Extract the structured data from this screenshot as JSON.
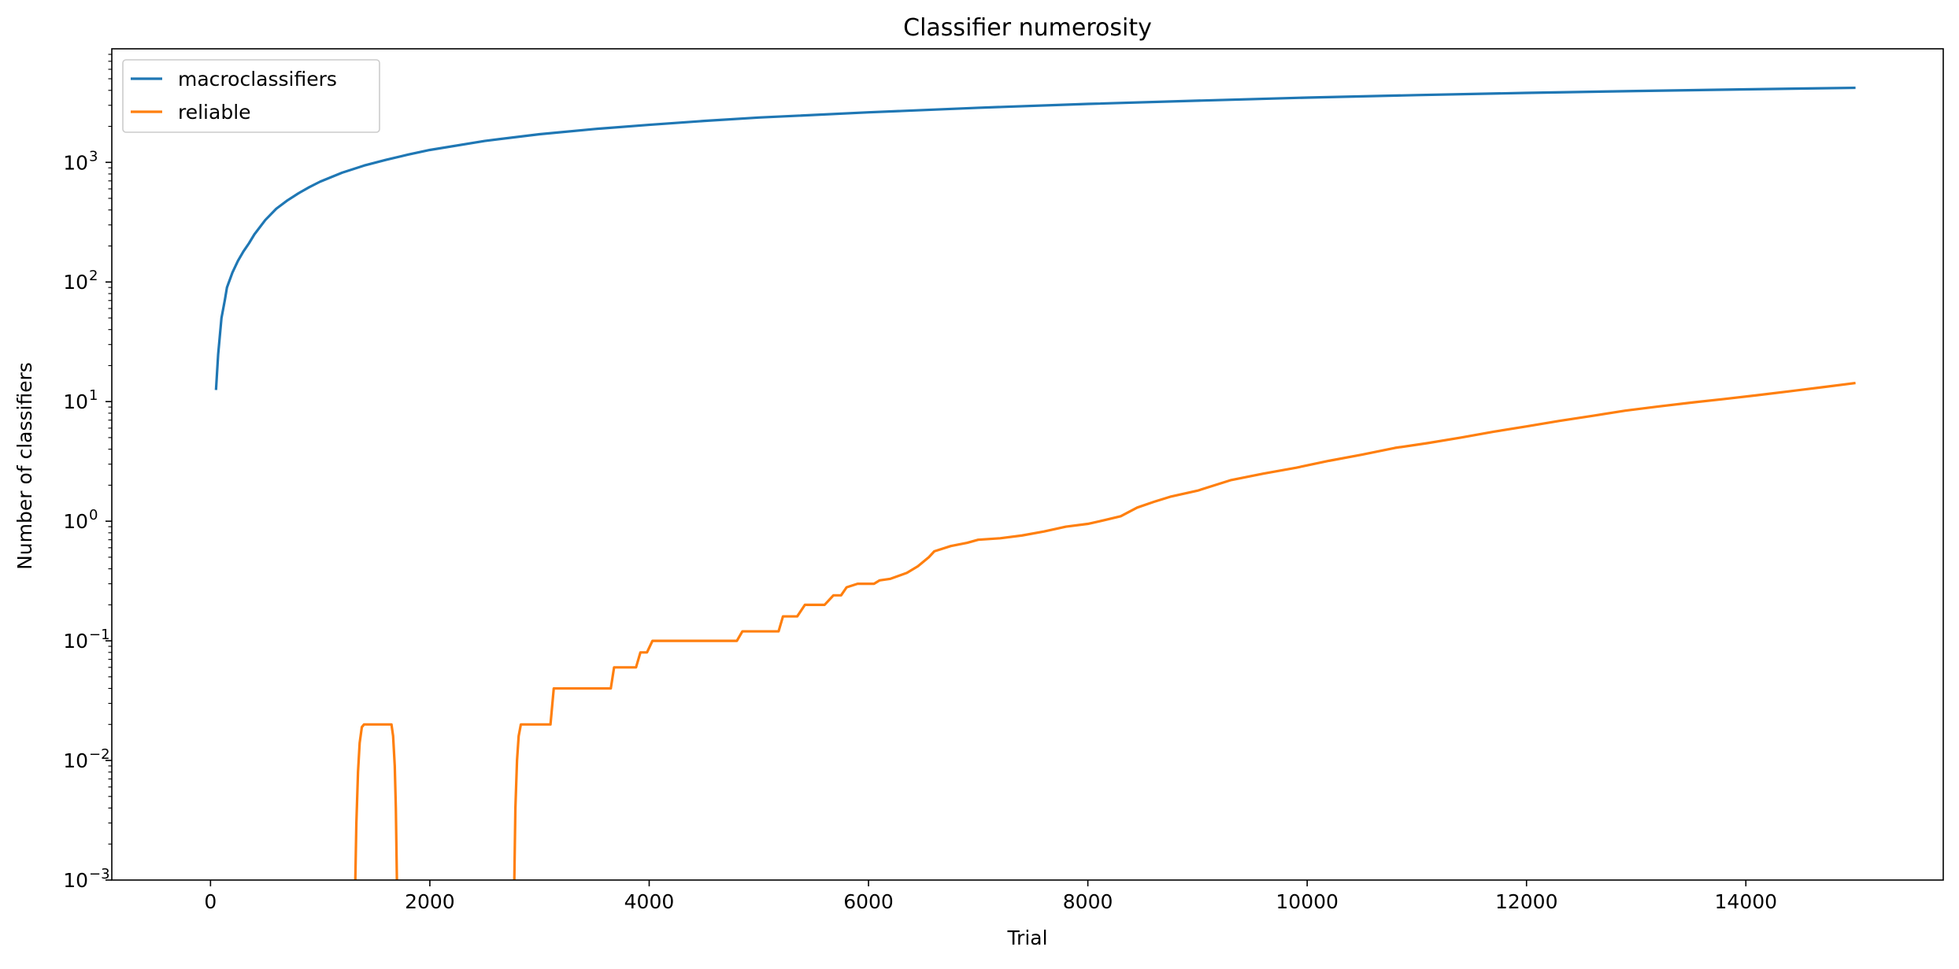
{
  "chart_data": {
    "type": "line",
    "title": "Classifier numerosity",
    "xlabel": "Trial",
    "ylabel": "Number of classifiers",
    "xlim": [
      -900,
      15800
    ],
    "ylim": [
      0.001,
      8900
    ],
    "yscale": "log",
    "x_ticks": [
      0,
      2000,
      4000,
      6000,
      8000,
      10000,
      12000,
      14000
    ],
    "x_tick_labels": [
      "0",
      "2000",
      "4000",
      "6000",
      "8000",
      "10000",
      "12000",
      "14000"
    ],
    "y_ticks": [
      {
        "value": 0.001,
        "base": "10",
        "exp": "−3"
      },
      {
        "value": 0.01,
        "base": "10",
        "exp": "−2"
      },
      {
        "value": 0.1,
        "base": "10",
        "exp": "−1"
      },
      {
        "value": 1,
        "base": "10",
        "exp": "0"
      },
      {
        "value": 10,
        "base": "10",
        "exp": "1"
      },
      {
        "value": 100,
        "base": "10",
        "exp": "2"
      },
      {
        "value": 1000,
        "base": "10",
        "exp": "3"
      }
    ],
    "grid": false,
    "legend_position": "top-left",
    "series": [
      {
        "name": "macroclassifiers",
        "color": "#1f77b4",
        "points": [
          [
            50,
            12.5
          ],
          [
            70,
            25
          ],
          [
            100,
            50
          ],
          [
            130,
            70
          ],
          [
            150,
            90
          ],
          [
            200,
            120
          ],
          [
            250,
            150
          ],
          [
            300,
            180
          ],
          [
            350,
            210
          ],
          [
            400,
            250
          ],
          [
            500,
            330
          ],
          [
            600,
            410
          ],
          [
            700,
            480
          ],
          [
            800,
            550
          ],
          [
            900,
            620
          ],
          [
            1000,
            690
          ],
          [
            1200,
            820
          ],
          [
            1400,
            940
          ],
          [
            1600,
            1050
          ],
          [
            1800,
            1160
          ],
          [
            2000,
            1270
          ],
          [
            2500,
            1510
          ],
          [
            3000,
            1720
          ],
          [
            3500,
            1900
          ],
          [
            4000,
            2060
          ],
          [
            4500,
            2220
          ],
          [
            5000,
            2370
          ],
          [
            6000,
            2620
          ],
          [
            7000,
            2860
          ],
          [
            8000,
            3080
          ],
          [
            9000,
            3280
          ],
          [
            10000,
            3480
          ],
          [
            11000,
            3650
          ],
          [
            12000,
            3810
          ],
          [
            13000,
            3950
          ],
          [
            14000,
            4080
          ],
          [
            15000,
            4200
          ]
        ]
      },
      {
        "name": "reliable",
        "color": "#ff7f0e",
        "segments": [
          [
            [
              1320,
              0.00095
            ],
            [
              1330,
              0.003
            ],
            [
              1345,
              0.008
            ],
            [
              1360,
              0.014
            ],
            [
              1380,
              0.019
            ],
            [
              1400,
              0.02
            ],
            [
              1650,
              0.02
            ],
            [
              1665,
              0.016
            ],
            [
              1680,
              0.009
            ],
            [
              1690,
              0.004
            ],
            [
              1700,
              0.00095
            ]
          ],
          [
            [
              2770,
              0.00095
            ],
            [
              2780,
              0.004
            ],
            [
              2795,
              0.01
            ],
            [
              2810,
              0.016
            ],
            [
              2830,
              0.02
            ],
            [
              3100,
              0.02
            ],
            [
              3130,
              0.04
            ],
            [
              3650,
              0.04
            ],
            [
              3680,
              0.06
            ],
            [
              3880,
              0.06
            ],
            [
              3920,
              0.08
            ],
            [
              3980,
              0.08
            ],
            [
              4030,
              0.1
            ],
            [
              4800,
              0.1
            ],
            [
              4850,
              0.12
            ],
            [
              5180,
              0.12
            ],
            [
              5220,
              0.16
            ],
            [
              5350,
              0.16
            ],
            [
              5420,
              0.2
            ],
            [
              5600,
              0.2
            ],
            [
              5680,
              0.24
            ],
            [
              5750,
              0.24
            ],
            [
              5800,
              0.28
            ],
            [
              5900,
              0.3
            ],
            [
              6050,
              0.3
            ],
            [
              6100,
              0.32
            ],
            [
              6200,
              0.33
            ],
            [
              6350,
              0.37
            ],
            [
              6450,
              0.42
            ],
            [
              6550,
              0.5
            ],
            [
              6600,
              0.56
            ],
            [
              6750,
              0.62
            ],
            [
              6900,
              0.66
            ],
            [
              7000,
              0.7
            ],
            [
              7200,
              0.72
            ],
            [
              7400,
              0.76
            ],
            [
              7600,
              0.82
            ],
            [
              7800,
              0.9
            ],
            [
              8000,
              0.95
            ],
            [
              8150,
              1.02
            ],
            [
              8300,
              1.1
            ],
            [
              8450,
              1.3
            ],
            [
              8600,
              1.45
            ],
            [
              8750,
              1.6
            ],
            [
              9000,
              1.8
            ],
            [
              9300,
              2.2
            ],
            [
              9600,
              2.5
            ],
            [
              9900,
              2.8
            ],
            [
              10200,
              3.2
            ],
            [
              10500,
              3.6
            ],
            [
              10800,
              4.1
            ],
            [
              11100,
              4.5
            ],
            [
              11400,
              5.0
            ],
            [
              11700,
              5.6
            ],
            [
              12000,
              6.2
            ],
            [
              12300,
              6.9
            ],
            [
              12600,
              7.6
            ],
            [
              12900,
              8.4
            ],
            [
              13200,
              9.1
            ],
            [
              13500,
              9.8
            ],
            [
              13800,
              10.5
            ],
            [
              14100,
              11.3
            ],
            [
              14400,
              12.2
            ],
            [
              14700,
              13.2
            ],
            [
              15000,
              14.3
            ]
          ]
        ]
      }
    ]
  }
}
